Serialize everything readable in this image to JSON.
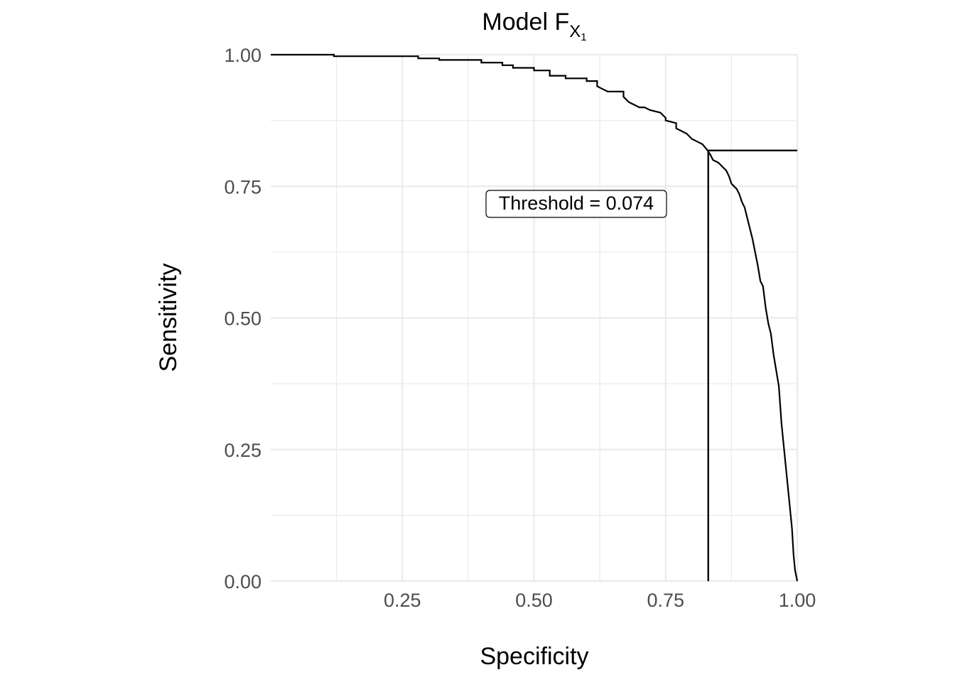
{
  "chart_data": {
    "type": "line",
    "title": {
      "main": "Model F",
      "subscript": "X",
      "subsubscript": "1"
    },
    "xlabel": "Specificity",
    "ylabel": "Sensitivity",
    "xlim": [
      0,
      1
    ],
    "ylim": [
      0,
      1
    ],
    "x_reversed": false,
    "x_ticks": [
      0.25,
      0.5,
      0.75,
      1.0
    ],
    "x_tick_labels": [
      "0.25",
      "0.50",
      "0.75",
      "1.00"
    ],
    "y_ticks": [
      0,
      0.25,
      0.5,
      0.75,
      1.0
    ],
    "y_tick_labels": [
      "0.00",
      "0.25",
      "0.50",
      "0.75",
      "1.00"
    ],
    "grid": true,
    "legend": "none",
    "line_color": "#000000",
    "grid_color": "#ebebeb",
    "series": [
      {
        "specificity": [
          0.0,
          0.12,
          0.12,
          0.28,
          0.28,
          0.32,
          0.32,
          0.4,
          0.4,
          0.44,
          0.44,
          0.46,
          0.46,
          0.5,
          0.5,
          0.53,
          0.53,
          0.56,
          0.56,
          0.6,
          0.6,
          0.62,
          0.62,
          0.63,
          0.64,
          0.67,
          0.67,
          0.68,
          0.69,
          0.7,
          0.71,
          0.72,
          0.74,
          0.75,
          0.75,
          0.77,
          0.77,
          0.78,
          0.79,
          0.8,
          0.81,
          0.82,
          0.83,
          0.835,
          0.84,
          0.85,
          0.86,
          0.865,
          0.87,
          0.875,
          0.88,
          0.885,
          0.89,
          0.895,
          0.9,
          0.905,
          0.91,
          0.915,
          0.92,
          0.925,
          0.93,
          0.935,
          0.94,
          0.945,
          0.95,
          0.955,
          0.96,
          0.965,
          0.97,
          0.975,
          0.98,
          0.985,
          0.99,
          0.993,
          0.996,
          0.998,
          1.0
        ],
        "sensitivity": [
          1.0,
          1.0,
          0.997,
          0.997,
          0.993,
          0.993,
          0.99,
          0.99,
          0.985,
          0.985,
          0.98,
          0.98,
          0.975,
          0.975,
          0.97,
          0.97,
          0.96,
          0.96,
          0.955,
          0.955,
          0.95,
          0.95,
          0.94,
          0.935,
          0.93,
          0.93,
          0.92,
          0.91,
          0.905,
          0.9,
          0.9,
          0.895,
          0.89,
          0.88,
          0.875,
          0.87,
          0.86,
          0.855,
          0.85,
          0.84,
          0.835,
          0.83,
          0.818,
          0.81,
          0.8,
          0.795,
          0.785,
          0.78,
          0.77,
          0.755,
          0.75,
          0.745,
          0.735,
          0.72,
          0.71,
          0.69,
          0.67,
          0.65,
          0.625,
          0.6,
          0.57,
          0.56,
          0.52,
          0.49,
          0.47,
          0.43,
          0.4,
          0.37,
          0.3,
          0.25,
          0.2,
          0.15,
          0.1,
          0.05,
          0.02,
          0.01,
          0.0
        ]
      }
    ],
    "threshold": {
      "specificity": 0.831,
      "sensitivity": 0.818,
      "label": "Threshold = 0.074",
      "label_specificity": 0.58,
      "label_sensitivity": 0.715
    }
  }
}
